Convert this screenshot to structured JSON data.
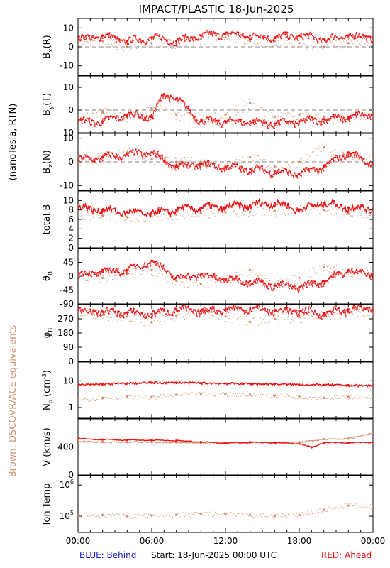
{
  "title": "IMPACT/PLASTIC   18-Jun-2025",
  "side_label_units": "(nanoTesla, RTN)",
  "side_label_brown": "Brown: DSCOVR/ACE equivalents",
  "footer": {
    "blue": "BLUE: Behind",
    "start": "Start: 18-Jun-2025 00:00 UTC",
    "red": "RED: Ahead"
  },
  "colors": {
    "ahead": "#ee1111",
    "ace": "#c8906e",
    "blue": "#1a1acc",
    "dash": "#888888"
  },
  "x_ticks": [
    "00:00",
    "06:00",
    "12:00",
    "18:00",
    "00:00"
  ],
  "chart_data": [
    {
      "type": "scatter",
      "panel": "Bx",
      "ylabel": "B_x(R)",
      "ylim": [
        -15,
        15
      ],
      "yticks": [
        10,
        0,
        -10
      ],
      "zero_line": true,
      "series": [
        {
          "name": "Ahead",
          "x": [
            0,
            2,
            4,
            6,
            8,
            10,
            12,
            14,
            16,
            18,
            20,
            22,
            24
          ],
          "y": [
            4,
            6,
            3,
            5,
            3,
            6,
            7,
            6,
            5,
            6,
            4,
            6,
            5
          ]
        },
        {
          "name": "DSCOVR/ACE",
          "x": [
            0,
            2,
            4,
            6,
            8,
            10,
            12,
            14,
            16,
            18,
            20,
            22,
            24
          ],
          "y": [
            1,
            3,
            0,
            2,
            2,
            4,
            5,
            3,
            3,
            2,
            0,
            2,
            3
          ]
        }
      ]
    },
    {
      "type": "scatter",
      "panel": "By",
      "ylabel": "B_y(T)",
      "ylim": [
        -10,
        15
      ],
      "yticks": [
        10,
        0,
        -10
      ],
      "zero_line": true,
      "series": [
        {
          "name": "Ahead",
          "x": [
            0,
            2,
            4,
            6,
            7,
            8,
            10,
            12,
            14,
            16,
            18,
            20,
            22,
            24
          ],
          "y": [
            -5,
            -5,
            -2,
            -3,
            7,
            5,
            -5,
            -5,
            -5,
            -6,
            -5,
            -4,
            -3,
            -2
          ]
        },
        {
          "name": "DSCOVR/ACE",
          "x": [
            0,
            2,
            4,
            6,
            8,
            10,
            12,
            14,
            16,
            18,
            20,
            22,
            24
          ],
          "y": [
            -3,
            -1,
            -3,
            1,
            -2,
            -4,
            -2,
            3,
            -3,
            -2,
            -3,
            -4,
            0
          ]
        }
      ]
    },
    {
      "type": "scatter",
      "panel": "Bz",
      "ylabel": "B_z(N)",
      "ylim": [
        -12,
        12
      ],
      "yticks": [
        10,
        0,
        -10
      ],
      "zero_line": true,
      "series": [
        {
          "name": "Ahead",
          "x": [
            0,
            2,
            4,
            6,
            8,
            10,
            12,
            14,
            16,
            18,
            20,
            22,
            24
          ],
          "y": [
            1,
            2,
            3,
            4,
            -2,
            -1,
            -2,
            -3,
            -4,
            -5,
            -2,
            4,
            -1
          ]
        },
        {
          "name": "DSCOVR/ACE",
          "x": [
            0,
            2,
            4,
            6,
            8,
            10,
            12,
            14,
            16,
            18,
            20,
            22,
            24
          ],
          "y": [
            0,
            2,
            4,
            1,
            0,
            0,
            -2,
            2,
            -2,
            0,
            6,
            2,
            1
          ]
        }
      ]
    },
    {
      "type": "scatter",
      "panel": "Btotal",
      "ylabel": "total B",
      "ylim": [
        0,
        12
      ],
      "yticks": [
        10,
        8,
        6,
        4,
        2,
        0
      ],
      "series": [
        {
          "name": "Ahead",
          "x": [
            0,
            2,
            4,
            6,
            8,
            10,
            12,
            14,
            16,
            18,
            20,
            22,
            24
          ],
          "y": [
            8.5,
            8,
            7.5,
            7.2,
            8,
            8.5,
            8.6,
            9,
            9.5,
            8,
            9.5,
            8.5,
            8.2
          ]
        },
        {
          "name": "DSCOVR/ACE",
          "x": [
            0,
            2,
            4,
            6,
            8,
            10,
            12,
            14,
            16,
            18,
            20,
            22,
            24
          ],
          "y": [
            7,
            6.8,
            6.5,
            6.7,
            7,
            7.3,
            7.5,
            7.6,
            7.8,
            8.2,
            8,
            7.2,
            7.5
          ]
        }
      ]
    },
    {
      "type": "scatter",
      "panel": "theta",
      "ylabel": "θ_B",
      "ylim": [
        -90,
        90
      ],
      "yticks": [
        45,
        0,
        -45,
        -90
      ],
      "series": [
        {
          "name": "Ahead",
          "x": [
            0,
            2,
            4,
            6,
            8,
            10,
            12,
            14,
            16,
            18,
            20,
            22,
            24
          ],
          "y": [
            5,
            15,
            20,
            50,
            -5,
            5,
            -10,
            -15,
            -30,
            -35,
            -15,
            20,
            5
          ]
        },
        {
          "name": "DSCOVR/ACE",
          "x": [
            0,
            2,
            4,
            6,
            8,
            10,
            12,
            14,
            16,
            18,
            20,
            22,
            24
          ],
          "y": [
            0,
            -5,
            10,
            20,
            -15,
            -25,
            -10,
            20,
            -25,
            -5,
            30,
            15,
            10
          ]
        }
      ]
    },
    {
      "type": "scatter",
      "panel": "phi",
      "ylabel": "φ_B",
      "ylim": [
        0,
        360
      ],
      "yticks": [
        270,
        180,
        90,
        0
      ],
      "series": [
        {
          "name": "Ahead",
          "x": [
            0,
            2,
            4,
            6,
            8,
            10,
            12,
            14,
            16,
            18,
            20,
            22,
            24
          ],
          "y": [
            325,
            315,
            310,
            300,
            330,
            320,
            330,
            335,
            320,
            320,
            305,
            330,
            335
          ]
        },
        {
          "name": "DSCOVR/ACE",
          "x": [
            0,
            2,
            4,
            6,
            8,
            10,
            12,
            14,
            16,
            18,
            20,
            22,
            24
          ],
          "y": [
            300,
            295,
            285,
            250,
            290,
            300,
            285,
            250,
            270,
            280,
            285,
            310,
            305
          ]
        }
      ]
    },
    {
      "type": "scatter",
      "panel": "Np",
      "ylabel": "N_p (cm^-3)",
      "log": true,
      "ylim": [
        0.4,
        50
      ],
      "yticks": [
        10,
        1
      ],
      "series": [
        {
          "name": "Ahead",
          "x": [
            0,
            2,
            4,
            6,
            8,
            10,
            12,
            14,
            16,
            18,
            20,
            22,
            24
          ],
          "y": [
            7,
            7.5,
            8,
            8.5,
            8.5,
            8.2,
            8,
            7.8,
            7.5,
            7.2,
            7,
            6.8,
            6.5
          ]
        },
        {
          "name": "DSCOVR/ACE",
          "x": [
            0,
            2,
            4,
            6,
            8,
            10,
            12,
            14,
            16,
            18,
            20,
            22,
            24
          ],
          "y": [
            2,
            2.3,
            2.6,
            2.5,
            3,
            3.2,
            3.3,
            3,
            2.8,
            2.6,
            2.3,
            2.5,
            2.7
          ]
        }
      ]
    },
    {
      "type": "line",
      "panel": "V",
      "ylabel": "V (km/s)",
      "ylim": [
        0,
        800
      ],
      "yticks": [
        400,
        0
      ],
      "series": [
        {
          "name": "Ahead",
          "x": [
            0,
            2,
            4,
            6,
            8,
            10,
            12,
            14,
            16,
            18,
            19,
            20,
            22,
            24
          ],
          "y": [
            520,
            505,
            500,
            495,
            490,
            470,
            455,
            465,
            460,
            445,
            395,
            460,
            460,
            465
          ]
        },
        {
          "name": "DSCOVR/ACE",
          "x": [
            0,
            2,
            4,
            6,
            8,
            10,
            12,
            14,
            16,
            18,
            20,
            22,
            24
          ],
          "y": [
            480,
            470,
            470,
            470,
            465,
            460,
            460,
            470,
            465,
            470,
            510,
            520,
            600
          ]
        }
      ]
    },
    {
      "type": "scatter",
      "panel": "Temp",
      "ylabel": "Ion Temp",
      "log": true,
      "ylim": [
        30000,
        2000000
      ],
      "yticks": [
        1000000,
        100000
      ],
      "series": [
        {
          "name": "DSCOVR/ACE",
          "x": [
            0,
            2,
            4,
            6,
            8,
            10,
            12,
            14,
            16,
            18,
            20,
            22,
            24
          ],
          "y": [
            100000,
            110000,
            100000,
            105000,
            110000,
            120000,
            115000,
            110000,
            100000,
            110000,
            160000,
            220000,
            200000
          ]
        }
      ]
    }
  ]
}
